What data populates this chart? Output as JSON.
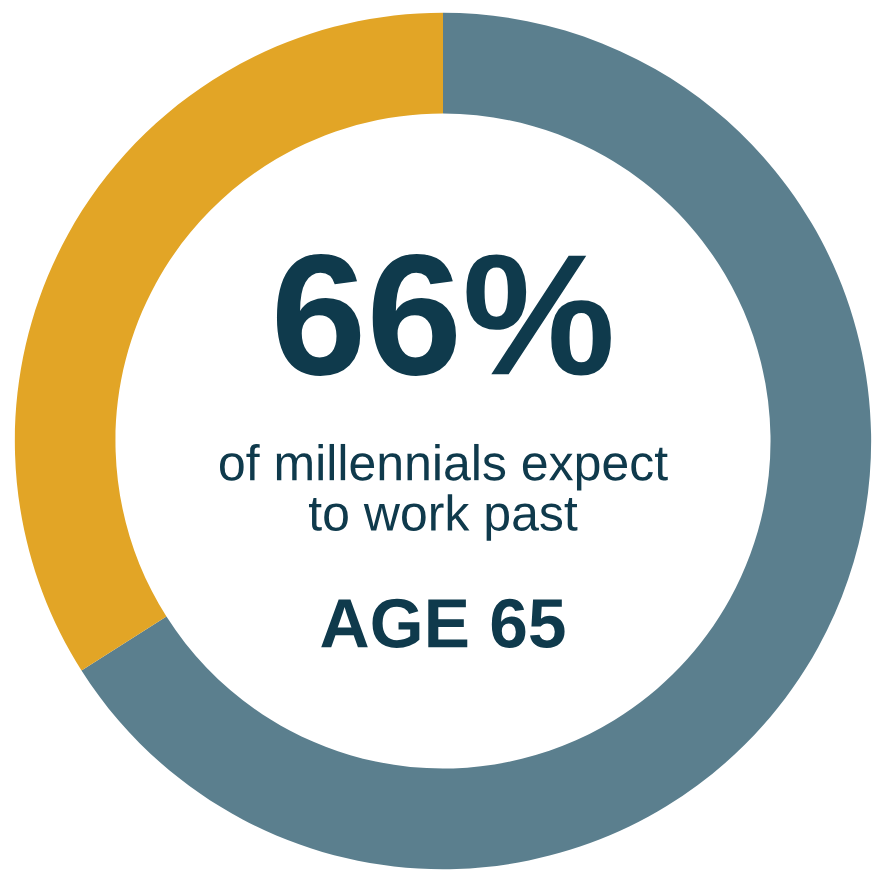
{
  "chart_data": {
    "type": "donut",
    "categories": [
      null,
      null
    ],
    "values": [
      66,
      34
    ],
    "colors": [
      "#5b7f8e",
      "#e2a526"
    ],
    "annotations": [
      "66%",
      "of millennials expect\nto work past",
      "AGE 65"
    ]
  }
}
